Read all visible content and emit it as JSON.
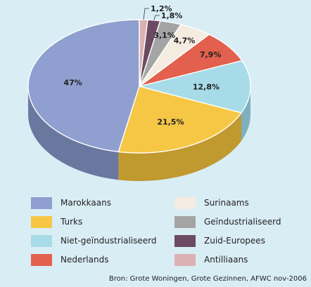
{
  "chart_data": {
    "type": "pie",
    "categories": [
      "Marokkaans",
      "Turks",
      "Niet-geïndustrialiseerd",
      "Nederlands",
      "Surinaams",
      "Geïndustrialiseerd",
      "Zuid-Europees",
      "Antilliaans"
    ],
    "values": [
      47,
      21.5,
      12.8,
      7.9,
      4.7,
      3.1,
      1.8,
      1.2
    ],
    "value_labels": [
      "47%",
      "21,5%",
      "12,8%",
      "7,9%",
      "4,7%",
      "3,1%",
      "1,8%",
      "1,2%"
    ],
    "colors": [
      "#8f9fcf",
      "#f6c745",
      "#a7dbe8",
      "#e2604d",
      "#f4ece0",
      "#a4a4a4",
      "#6c4a63",
      "#dcb1b4"
    ],
    "side_colors": [
      "#6a789f",
      "#c0992f",
      "#7fb0bd",
      "#aa4638",
      "#c6bdb0",
      "#7b7b7b",
      "#4d3346",
      "#b08a8d"
    ],
    "legend_placement": "bottom",
    "source": "Bron: Grote Woningen, Grote Gezinnen, AFWC nov-2006"
  }
}
